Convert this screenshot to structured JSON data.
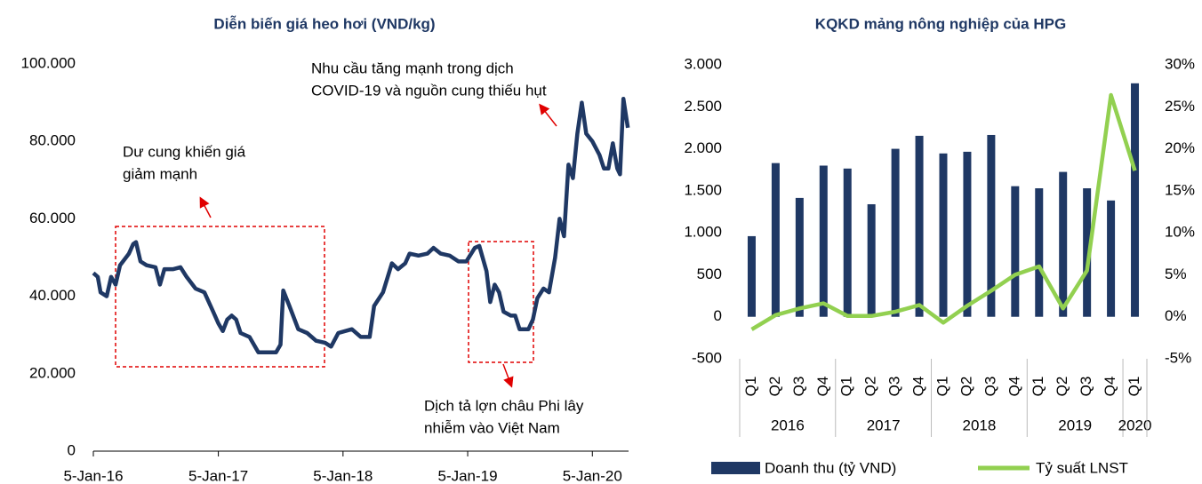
{
  "chart_data": [
    {
      "type": "line",
      "title": "Diễn biến giá heo hơi (VND/kg)",
      "color": "#1f3864",
      "x": [
        "2016-01-05",
        "2016-01-18",
        "2016-01-26",
        "2016-02-13",
        "2016-02-26",
        "2016-03-10",
        "2016-03-23",
        "2016-04-18",
        "2016-05-01",
        "2016-05-09",
        "2016-05-22",
        "2016-06-09",
        "2016-07-05",
        "2016-07-18",
        "2016-07-31",
        "2016-08-26",
        "2016-09-16",
        "2016-10-04",
        "2016-10-30",
        "2016-11-25",
        "2016-12-21",
        "2017-01-05",
        "2017-01-18",
        "2017-01-31",
        "2017-02-13",
        "2017-02-26",
        "2017-03-11",
        "2017-04-06",
        "2017-05-02",
        "2017-05-28",
        "2017-06-23",
        "2017-07-06",
        "2017-07-14",
        "2017-08-01",
        "2017-08-27",
        "2017-09-22",
        "2017-10-18",
        "2017-11-13",
        "2017-12-01",
        "2017-12-22",
        "2018-01-31",
        "2018-02-26",
        "2018-03-24",
        "2018-04-06",
        "2018-05-02",
        "2018-05-28",
        "2018-06-15",
        "2018-07-06",
        "2018-07-19",
        "2018-08-14",
        "2018-09-09",
        "2018-09-27",
        "2018-10-18",
        "2018-11-13",
        "2018-12-09",
        "2019-01-01",
        "2019-01-26",
        "2019-02-08",
        "2019-03-01",
        "2019-03-12",
        "2019-03-25",
        "2019-04-07",
        "2019-04-20",
        "2019-05-11",
        "2019-05-24",
        "2019-06-06",
        "2019-07-02",
        "2019-07-15",
        "2019-07-28",
        "2019-08-15",
        "2019-08-31",
        "2019-09-18",
        "2019-10-01",
        "2019-10-14",
        "2019-10-27",
        "2019-11-09",
        "2019-11-22",
        "2019-12-05",
        "2019-12-18",
        "2020-01-05",
        "2020-01-26",
        "2020-02-08",
        "2020-02-21",
        "2020-03-05",
        "2020-03-18",
        "2020-03-26",
        "2020-04-05",
        "2020-04-18"
      ],
      "values": [
        46000,
        45000,
        41000,
        40000,
        45000,
        43000,
        48000,
        51000,
        53500,
        54000,
        49000,
        48000,
        47500,
        43000,
        47000,
        47000,
        47500,
        45000,
        42000,
        41000,
        36000,
        33000,
        31000,
        34000,
        35000,
        34000,
        30500,
        29500,
        25500,
        25500,
        25500,
        27500,
        41500,
        37500,
        31500,
        30500,
        28500,
        28000,
        27000,
        30500,
        31500,
        29500,
        29500,
        37500,
        41000,
        48500,
        47000,
        48500,
        51000,
        50500,
        51000,
        52500,
        51000,
        50500,
        49000,
        49000,
        52500,
        53000,
        46500,
        38500,
        43000,
        41000,
        36000,
        35000,
        35000,
        31500,
        31500,
        34000,
        39500,
        42000,
        41000,
        50000,
        60000,
        55500,
        74000,
        70500,
        82000,
        90000,
        82000,
        80000,
        76500,
        73000,
        73000,
        79500,
        73000,
        71500,
        91000,
        83500
      ],
      "xlim": [
        "2016-01-05",
        "2020-04-20"
      ],
      "xticks": [
        {
          "value": "2016-01-05",
          "label": "5-Jan-16"
        },
        {
          "value": "2017-01-05",
          "label": "5-Jan-17"
        },
        {
          "value": "2018-01-05",
          "label": "5-Jan-18"
        },
        {
          "value": "2019-01-05",
          "label": "5-Jan-19"
        },
        {
          "value": "2020-01-05",
          "label": "5-Jan-20"
        }
      ],
      "ylim": [
        0,
        100000
      ],
      "yticks": [
        0,
        {
          "value": 20000,
          "label": "20.000"
        },
        {
          "value": 40000,
          "label": "40.000"
        },
        {
          "value": 60000,
          "label": "60.000"
        },
        {
          "value": 80000,
          "label": "80.000"
        },
        {
          "value": 100000,
          "label": "100.000"
        }
      ],
      "annotations": [
        {
          "lines": [
            "Dư cung khiến giá",
            "giảm mạnh"
          ]
        },
        {
          "lines": [
            "Nhu cầu tăng mạnh trong dịch",
            "COVID-19 và nguồn cung thiếu hụt"
          ]
        },
        {
          "lines": [
            "Dịch tả lợn châu Phi lây",
            "nhiễm vào Việt Nam"
          ]
        }
      ]
    },
    {
      "type": "bar",
      "title": "KQKD mảng nông nghiệp của HPG",
      "years": [
        {
          "name": "2016",
          "quarters": [
            "Q1",
            "Q2",
            "Q3",
            "Q4"
          ]
        },
        {
          "name": "2017",
          "quarters": [
            "Q1",
            "Q2",
            "Q3",
            "Q4"
          ]
        },
        {
          "name": "2018",
          "quarters": [
            "Q1",
            "Q2",
            "Q3",
            "Q4"
          ]
        },
        {
          "name": "2019",
          "quarters": [
            "Q1",
            "Q2",
            "Q3",
            "Q4"
          ]
        },
        {
          "name": "2020",
          "quarters": [
            "Q1"
          ]
        }
      ],
      "series": [
        {
          "name": "Doanh thu (tỷ VND)",
          "type": "bar",
          "color": "#1f3864",
          "values": [
            960,
            1830,
            1415,
            1800,
            1765,
            1340,
            2000,
            2155,
            1945,
            1965,
            2165,
            1555,
            1530,
            1725,
            1530,
            1385,
            2780
          ]
        },
        {
          "name": "Tỷ suất LNST",
          "type": "line",
          "axis": "y2",
          "color": "#92d050",
          "values": [
            -1.5,
            0.2,
            1.0,
            1.6,
            0.1,
            0.1,
            0.6,
            1.4,
            -0.7,
            1.3,
            3.1,
            5.0,
            6.0,
            1.0,
            5.5,
            26.4,
            17.4
          ]
        }
      ],
      "ylim": [
        -500,
        3000
      ],
      "yticks": [
        -500,
        0,
        500,
        {
          "value": 1000,
          "label": "1.000"
        },
        {
          "value": 1500,
          "label": "1.500"
        },
        {
          "value": 2000,
          "label": "2.000"
        },
        {
          "value": 2500,
          "label": "2.500"
        },
        {
          "value": 3000,
          "label": "3.000"
        }
      ],
      "y2lim": [
        -5,
        30
      ],
      "y2ticks": [
        {
          "value": -5,
          "label": "-5%"
        },
        {
          "value": 0,
          "label": "0%"
        },
        {
          "value": 5,
          "label": "5%"
        },
        {
          "value": 10,
          "label": "10%"
        },
        {
          "value": 15,
          "label": "15%"
        },
        {
          "value": 20,
          "label": "20%"
        },
        {
          "value": 25,
          "label": "25%"
        },
        {
          "value": 30,
          "label": "30%"
        }
      ]
    }
  ]
}
